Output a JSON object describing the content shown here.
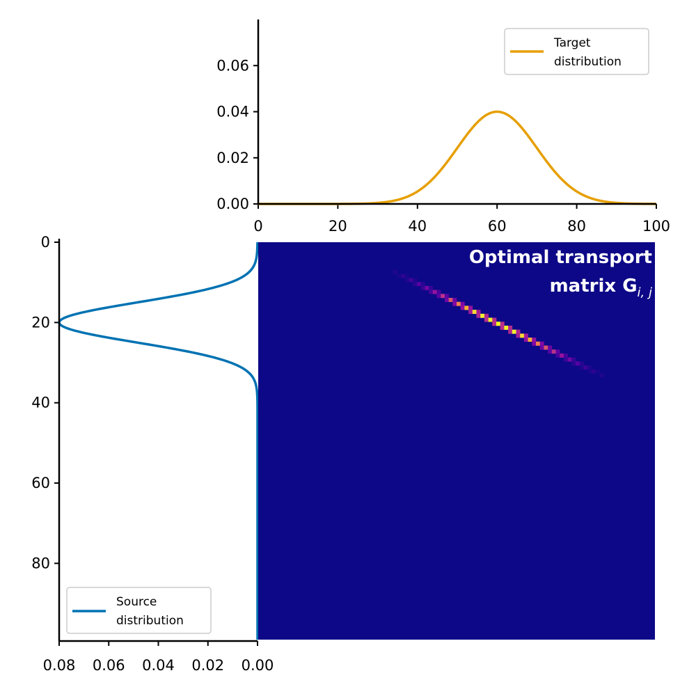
{
  "chart_data": [
    {
      "type": "line",
      "panel": "top",
      "xlim": [
        0,
        100
      ],
      "ylim": [
        0,
        0.08
      ],
      "xticks": [
        "0",
        "20",
        "40",
        "60",
        "80",
        "100"
      ],
      "yticks": [
        "0.00",
        "0.02",
        "0.04",
        "0.06"
      ],
      "xlabel": "",
      "ylabel": "",
      "grid": false,
      "legend_position": "top-right",
      "series": [
        {
          "name_lines": [
            "Target",
            "distribution"
          ],
          "color": "#e69f00",
          "shape": "gaussian",
          "mean": 60,
          "std": 10,
          "peak": 0.04
        }
      ]
    },
    {
      "type": "line",
      "panel": "left",
      "orientation": "horizontal-values",
      "index_axis_lim": [
        0,
        99
      ],
      "value_axis_lim": [
        0.08,
        0
      ],
      "index_ticks": [
        "0",
        "20",
        "40",
        "60",
        "80"
      ],
      "value_ticks": [
        "0.08",
        "0.06",
        "0.04",
        "0.02",
        "0.00"
      ],
      "grid": false,
      "legend_position": "bottom-left",
      "series": [
        {
          "name_lines": [
            "Source",
            "distribution"
          ],
          "color": "#0072b2",
          "shape": "gaussian",
          "mean": 20,
          "std": 5,
          "peak": 0.08
        }
      ]
    },
    {
      "type": "heatmap",
      "panel": "main",
      "title_lines": [
        "Optimal transport",
        "matrix G"
      ],
      "title_subscript": "i, j",
      "rows": 100,
      "cols": 100,
      "colormap": "plasma",
      "background_color": "#0d0887",
      "transport": {
        "source": {
          "mean": 20,
          "std": 5
        },
        "target": {
          "mean": 60,
          "std": 10
        }
      }
    }
  ]
}
